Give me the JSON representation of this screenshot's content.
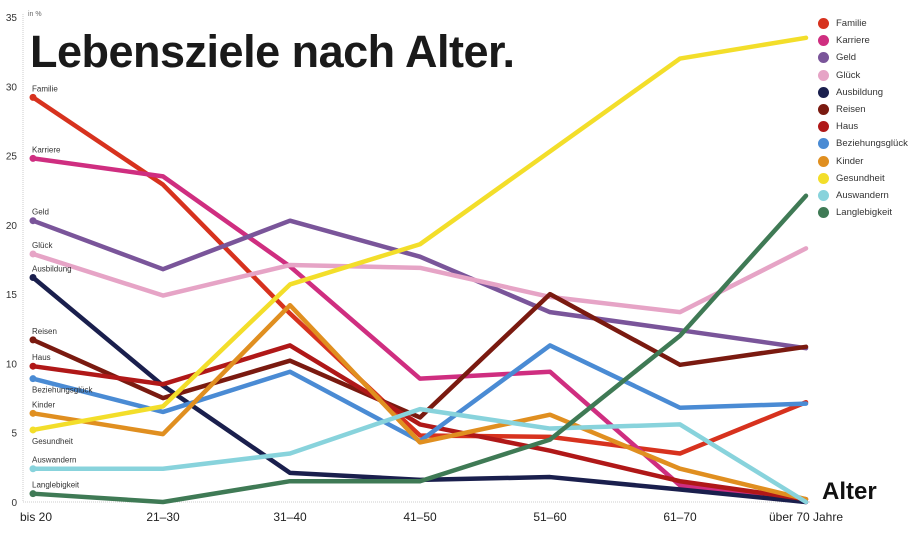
{
  "chart_data": {
    "type": "line",
    "title": "Lebensziele nach Alter.",
    "xlabel": "Alter",
    "ylabel": "in %",
    "ylim": [
      0,
      35
    ],
    "yticks": [
      0,
      5,
      10,
      15,
      20,
      25,
      30,
      35
    ],
    "categories": [
      "bis 20",
      "21–30",
      "31–40",
      "41–50",
      "51–60",
      "61–70",
      "über 70 Jahre"
    ],
    "legend_position": "right",
    "grid": false,
    "series": [
      {
        "name": "Familie",
        "color": "#d7321e",
        "values": [
          29.2,
          22.9,
          13.6,
          4.8,
          4.7,
          3.5,
          7.2
        ]
      },
      {
        "name": "Karriere",
        "color": "#cf2e80",
        "values": [
          24.8,
          23.5,
          17.0,
          8.9,
          9.4,
          1.2,
          0
        ]
      },
      {
        "name": "Geld",
        "color": "#7a559a",
        "values": [
          20.3,
          16.8,
          20.3,
          17.7,
          13.7,
          12.4,
          11.1
        ]
      },
      {
        "name": "Glück",
        "color": "#e6a4c6",
        "values": [
          17.9,
          14.9,
          17.1,
          16.9,
          14.8,
          13.7,
          18.3
        ]
      },
      {
        "name": "Ausbildung",
        "color": "#1a1f4d",
        "values": [
          16.2,
          8.4,
          2.1,
          1.6,
          1.8,
          0.9,
          0
        ]
      },
      {
        "name": "Reisen",
        "color": "#7a1a10",
        "values": [
          11.7,
          7.5,
          10.2,
          6.1,
          15.0,
          9.9,
          11.2
        ]
      },
      {
        "name": "Haus",
        "color": "#b01818",
        "values": [
          9.8,
          8.5,
          11.3,
          5.6,
          3.7,
          1.5,
          0.2
        ]
      },
      {
        "name": "Beziehungsglück",
        "color": "#4a8bd4",
        "values": [
          8.9,
          6.5,
          9.4,
          4.4,
          11.3,
          6.8,
          7.1
        ]
      },
      {
        "name": "Kinder",
        "color": "#e08f20",
        "values": [
          6.4,
          4.9,
          14.2,
          4.3,
          6.3,
          2.4,
          0.2
        ]
      },
      {
        "name": "Gesundheit",
        "color": "#f3de2a",
        "values": [
          5.2,
          6.9,
          15.7,
          18.6,
          25.3,
          32.0,
          33.5
        ]
      },
      {
        "name": "Auswandern",
        "color": "#88d3dc",
        "values": [
          2.4,
          2.4,
          3.5,
          6.7,
          5.3,
          5.6,
          0
        ]
      },
      {
        "name": "Langlebigkeit",
        "color": "#3f7a55",
        "values": [
          0.6,
          0,
          1.5,
          1.5,
          4.5,
          12.0,
          22.1
        ]
      }
    ]
  }
}
